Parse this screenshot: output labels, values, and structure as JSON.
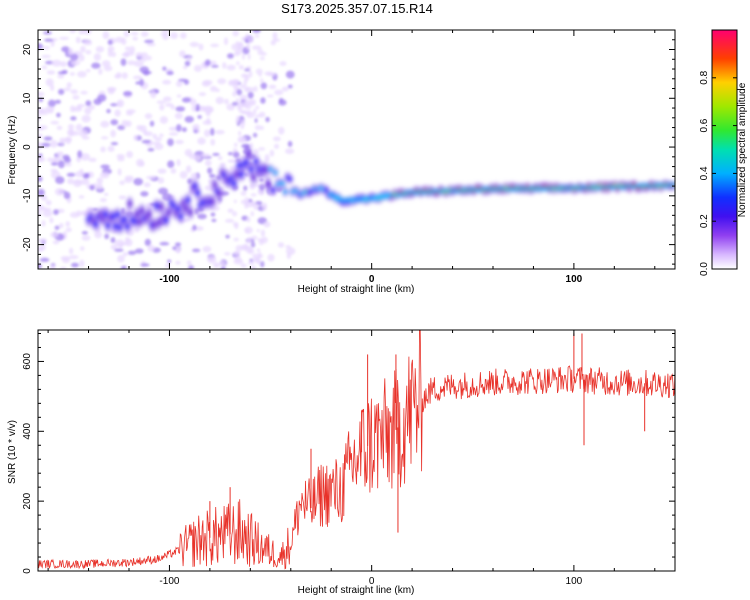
{
  "figure_title": "S173.2025.357.07.15.R14",
  "chart_data": [
    {
      "type": "heatmap",
      "title": "S173.2025.357.07.15.R14",
      "xlabel": "Height of straight line (km)",
      "ylabel": "Frequency (Hz)",
      "xlim": [
        -165,
        150
      ],
      "ylim": [
        -25,
        24
      ],
      "xticks": [
        -100,
        0,
        100
      ],
      "xtick_labels": [
        "-100",
        "0",
        "100"
      ],
      "yticks": [
        -20,
        -10,
        0,
        10,
        20
      ],
      "ytick_labels": [
        "-20",
        "-10",
        "0",
        "10",
        "20"
      ],
      "colorbar": {
        "label": "Normalized spectral amplitude",
        "range": [
          0,
          1
        ],
        "ticks": [
          0.0,
          0.2,
          0.4,
          0.6,
          0.8
        ],
        "tick_labels": [
          "0.0",
          "0.2",
          "0.4",
          "0.6",
          "0.8"
        ],
        "colormap": [
          "#ffffff",
          "#e8d8ff",
          "#a080f0",
          "#6a1be0",
          "#1010ff",
          "#00c0ff",
          "#00e0c0",
          "#40e840",
          "#c8e800",
          "#ffb000",
          "#ff3000",
          "#ff0060"
        ]
      },
      "ridge": {
        "description_points": [
          {
            "x": -135,
            "y": -14
          },
          {
            "x": -110,
            "y": -14
          },
          {
            "x": -95,
            "y": -12
          },
          {
            "x": -75,
            "y": -8
          },
          {
            "x": -62,
            "y": -3
          },
          {
            "x": -50,
            "y": -7
          },
          {
            "x": -35,
            "y": -9.5
          },
          {
            "x": -25,
            "y": -8.5
          },
          {
            "x": -15,
            "y": -11
          },
          {
            "x": 0,
            "y": -10.5
          },
          {
            "x": 20,
            "y": -9.3
          },
          {
            "x": 60,
            "y": -8.6
          },
          {
            "x": 100,
            "y": -8.4
          },
          {
            "x": 150,
            "y": -7.8
          }
        ],
        "peak_amplitude_region_x": [
          10,
          150
        ]
      }
    },
    {
      "type": "line",
      "title": "",
      "xlabel": "Height of straight line (km)",
      "ylabel": "SNR (10 * v/v)",
      "xlim": [
        -165,
        150
      ],
      "ylim": [
        0,
        690
      ],
      "xticks": [
        -100,
        0,
        100
      ],
      "xtick_labels": [
        "-100",
        "0",
        "100"
      ],
      "yticks": [
        0,
        200,
        400,
        600
      ],
      "ytick_labels": [
        "0",
        "200",
        "400",
        "600"
      ],
      "series": [
        {
          "name": "SNR",
          "color": "#e8322a",
          "points": [
            {
              "x": -165,
              "y": 20
            },
            {
              "x": -140,
              "y": 20
            },
            {
              "x": -120,
              "y": 25
            },
            {
              "x": -105,
              "y": 35
            },
            {
              "x": -95,
              "y": 60
            },
            {
              "x": -85,
              "y": 90
            },
            {
              "x": -75,
              "y": 100
            },
            {
              "x": -65,
              "y": 110
            },
            {
              "x": -55,
              "y": 70
            },
            {
              "x": -45,
              "y": 40
            },
            {
              "x": -40,
              "y": 80
            },
            {
              "x": -35,
              "y": 200
            },
            {
              "x": -30,
              "y": 180
            },
            {
              "x": -25,
              "y": 220
            },
            {
              "x": -15,
              "y": 230
            },
            {
              "x": -10,
              "y": 300
            },
            {
              "x": -5,
              "y": 340
            },
            {
              "x": 0,
              "y": 370
            },
            {
              "x": 10,
              "y": 390
            },
            {
              "x": 20,
              "y": 460
            },
            {
              "x": 30,
              "y": 520
            },
            {
              "x": 40,
              "y": 530
            },
            {
              "x": 60,
              "y": 540
            },
            {
              "x": 80,
              "y": 545
            },
            {
              "x": 100,
              "y": 550
            },
            {
              "x": 120,
              "y": 540
            },
            {
              "x": 150,
              "y": 535
            }
          ],
          "spikes": [
            {
              "x": -70,
              "y": 240
            },
            {
              "x": -80,
              "y": 200
            },
            {
              "x": -30,
              "y": 350
            },
            {
              "x": -5,
              "y": 460
            },
            {
              "x": -2,
              "y": 620
            },
            {
              "x": 12,
              "y": 620
            },
            {
              "x": 13,
              "y": 110
            },
            {
              "x": 100,
              "y": 680
            },
            {
              "x": 104,
              "y": 680
            },
            {
              "x": 105,
              "y": 360
            },
            {
              "x": 135,
              "y": 400
            }
          ]
        }
      ]
    }
  ]
}
